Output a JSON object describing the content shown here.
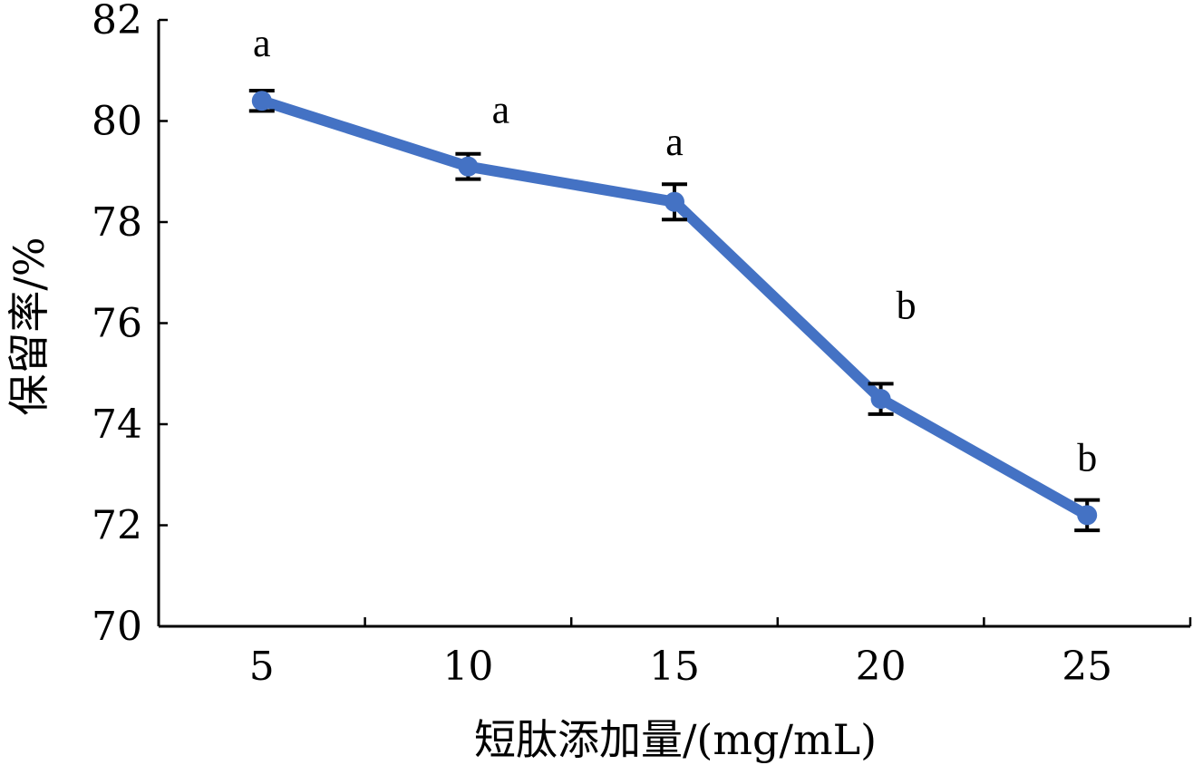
{
  "chart_data": {
    "type": "line",
    "title": "",
    "xlabel": "短肽添加量/(mg/mL)",
    "ylabel": "保留率/%",
    "categories": [
      "5",
      "10",
      "15",
      "20",
      "25"
    ],
    "x": [
      5,
      10,
      15,
      20,
      25
    ],
    "ylim": [
      70,
      82
    ],
    "yticks": [
      70,
      72,
      74,
      76,
      78,
      80,
      82
    ],
    "grid": false,
    "legend": "none",
    "series": [
      {
        "values": [
          80.4,
          79.1,
          78.4,
          74.5,
          72.2
        ],
        "errors": [
          0.2,
          0.25,
          0.35,
          0.3,
          0.3
        ],
        "labels": [
          "a",
          "a",
          "a",
          "b",
          "b"
        ],
        "color": "#4472C4"
      }
    ]
  }
}
